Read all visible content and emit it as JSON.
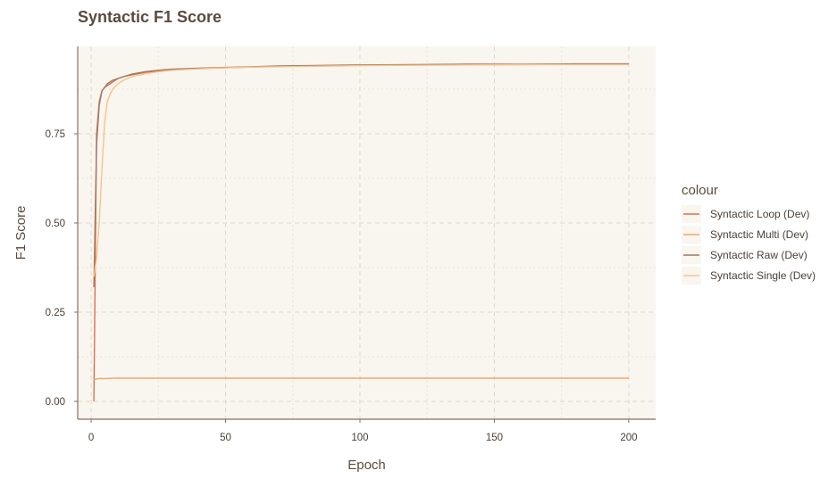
{
  "chart_data": {
    "type": "line",
    "title": "Syntactic F1 Score",
    "xlabel": "Epoch",
    "ylabel": "F1 Score",
    "xlim": [
      -5,
      210
    ],
    "ylim": [
      -0.05,
      0.995
    ],
    "xticks": [
      0,
      50,
      100,
      150,
      200
    ],
    "yticks": [
      0.0,
      0.25,
      0.5,
      0.75
    ],
    "xtick_labels": [
      "0",
      "50",
      "100",
      "150",
      "200"
    ],
    "ytick_labels": [
      "0.00",
      "0.25",
      "0.50",
      "0.75"
    ],
    "grid": true,
    "legend": {
      "title": "colour",
      "position": "right"
    },
    "series": [
      {
        "name": "Syntactic Loop (Dev)",
        "color": "#d9734f",
        "x": [
          1,
          2,
          3,
          4,
          5,
          6,
          8,
          10,
          12,
          15,
          20,
          25,
          30,
          40,
          50,
          60,
          70,
          80,
          90,
          100,
          120,
          140,
          160,
          180,
          200
        ],
        "y": [
          0.0,
          0.75,
          0.84,
          0.87,
          0.88,
          0.885,
          0.895,
          0.905,
          0.91,
          0.915,
          0.922,
          0.926,
          0.93,
          0.933,
          0.935,
          0.937,
          0.939,
          0.94,
          0.941,
          0.942,
          0.943,
          0.944,
          0.944,
          0.945,
          0.945
        ]
      },
      {
        "name": "Syntactic Multi (Dev)",
        "color": "#f0a868",
        "x": [
          1,
          2,
          3,
          5,
          10,
          20,
          50,
          100,
          150,
          200
        ],
        "y": [
          0.06,
          0.063,
          0.064,
          0.064,
          0.065,
          0.065,
          0.065,
          0.065,
          0.065,
          0.065
        ]
      },
      {
        "name": "Syntactic Raw (Dev)",
        "color": "#9c7a68",
        "x": [
          1,
          2,
          3,
          4,
          5,
          6,
          8,
          10,
          12,
          15,
          20,
          25,
          30,
          40,
          50,
          60,
          70,
          80,
          90,
          100,
          120,
          140,
          160,
          180,
          200
        ],
        "y": [
          0.32,
          0.72,
          0.83,
          0.87,
          0.88,
          0.89,
          0.9,
          0.905,
          0.91,
          0.917,
          0.924,
          0.928,
          0.931,
          0.934,
          0.936,
          0.938,
          0.94,
          0.941,
          0.942,
          0.943,
          0.944,
          0.945,
          0.945,
          0.946,
          0.946
        ]
      },
      {
        "name": "Syntactic Single (Dev)",
        "color": "#f7c48a",
        "x": [
          1,
          2,
          3,
          4,
          5,
          6,
          7,
          8,
          10,
          12,
          15,
          20,
          25,
          30,
          40,
          50,
          60,
          70,
          80,
          90,
          100,
          120,
          140,
          160,
          180,
          200
        ],
        "y": [
          0.35,
          0.4,
          0.5,
          0.65,
          0.78,
          0.84,
          0.86,
          0.875,
          0.89,
          0.9,
          0.91,
          0.918,
          0.924,
          0.928,
          0.932,
          0.935,
          0.937,
          0.938,
          0.939,
          0.94,
          0.941,
          0.942,
          0.943,
          0.944,
          0.944,
          0.944
        ]
      }
    ]
  }
}
